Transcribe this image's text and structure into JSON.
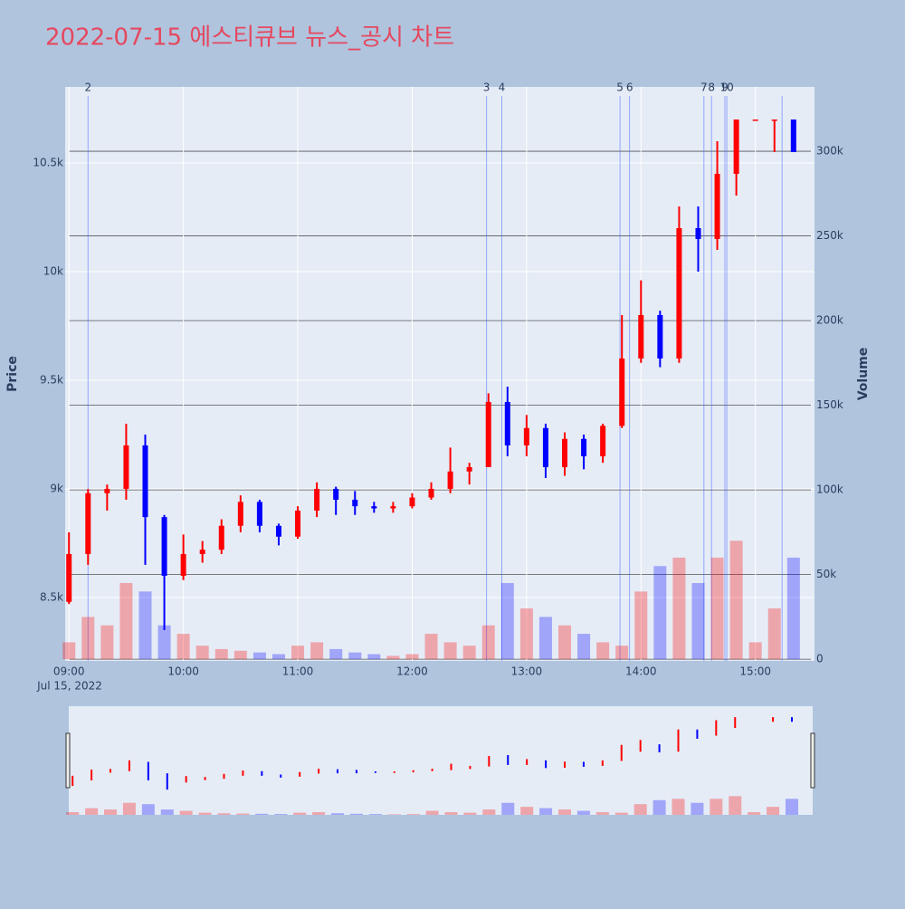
{
  "chart_data": {
    "type": "candlestick",
    "title": "2022-07-15 에스티큐브 뉴스_공시 차트",
    "y_title": "Price",
    "y2_title": "Volume",
    "x_date_label": "Jul 15, 2022",
    "increasing_color": "#ff0000",
    "decreasing_color": "#0000ff",
    "x": [
      "09:00",
      "09:10",
      "09:20",
      "09:30",
      "09:40",
      "09:50",
      "10:00",
      "10:10",
      "10:20",
      "10:30",
      "10:40",
      "10:50",
      "11:00",
      "11:10",
      "11:20",
      "11:30",
      "11:40",
      "11:50",
      "12:00",
      "12:10",
      "12:20",
      "12:30",
      "12:40",
      "12:50",
      "13:00",
      "13:10",
      "13:20",
      "13:30",
      "13:40",
      "13:50",
      "14:00",
      "14:10",
      "14:20",
      "14:30",
      "14:40",
      "14:50",
      "15:00",
      "15:10",
      "15:20"
    ],
    "open": [
      8480,
      8700,
      8980,
      9000,
      9200,
      8870,
      8600,
      8700,
      8720,
      8830,
      8940,
      8830,
      8780,
      8900,
      9000,
      8950,
      8920,
      8910,
      8920,
      8960,
      9000,
      9080,
      9100,
      9400,
      9200,
      9280,
      9100,
      9230,
      9150,
      9290,
      9600,
      9800,
      9600,
      10200,
      10150,
      10450,
      10700,
      10700,
      10700
    ],
    "high": [
      8800,
      9000,
      9020,
      9300,
      9250,
      8880,
      8790,
      8760,
      8860,
      8970,
      8950,
      8840,
      8920,
      9030,
      9010,
      8990,
      8940,
      8940,
      8980,
      9030,
      9190,
      9120,
      9440,
      9470,
      9340,
      9300,
      9260,
      9250,
      9300,
      9800,
      9960,
      9820,
      10300,
      10300,
      10600,
      10700,
      10700,
      10700,
      10700
    ],
    "low": [
      8470,
      8650,
      8900,
      8950,
      8650,
      8350,
      8580,
      8660,
      8700,
      8800,
      8800,
      8740,
      8770,
      8870,
      8880,
      8880,
      8890,
      8890,
      8910,
      8950,
      8980,
      9020,
      9100,
      9150,
      9150,
      9050,
      9060,
      9090,
      9120,
      9280,
      9580,
      9560,
      9580,
      10000,
      10100,
      10350,
      10700,
      10550,
      10550
    ],
    "close": [
      8700,
      8980,
      9000,
      9200,
      8870,
      8600,
      8700,
      8720,
      8830,
      8940,
      8830,
      8780,
      8900,
      9000,
      8950,
      8920,
      8910,
      8920,
      8960,
      9000,
      9080,
      9100,
      9400,
      9200,
      9280,
      9100,
      9230,
      9150,
      9290,
      9600,
      9800,
      9600,
      10200,
      10150,
      10450,
      10700,
      10700,
      10700,
      10550
    ],
    "volume": [
      10000,
      25000,
      20000,
      45000,
      40000,
      20000,
      15000,
      8000,
      6000,
      5000,
      4000,
      3000,
      8000,
      10000,
      6000,
      4000,
      3000,
      2000,
      3000,
      15000,
      10000,
      8000,
      20000,
      45000,
      30000,
      25000,
      20000,
      15000,
      10000,
      8000,
      40000,
      55000,
      60000,
      45000,
      60000,
      70000,
      10000,
      30000,
      60000
    ],
    "xlim": [
      "08:58",
      "15:31"
    ],
    "xticks": [
      "09:00",
      "10:00",
      "11:00",
      "12:00",
      "13:00",
      "14:00",
      "15:00"
    ],
    "ylim": [
      8208,
      10850
    ],
    "yticks": [
      {
        "value": 8500,
        "label": "8.5k"
      },
      {
        "value": 9000,
        "label": "9k"
      },
      {
        "value": 9500,
        "label": "9.5k"
      },
      {
        "value": 10000,
        "label": "10k"
      },
      {
        "value": 10500,
        "label": "10.5k"
      }
    ],
    "y2lim": [
      -1000,
      338000
    ],
    "y2ticks": [
      0,
      {
        "value": 50000,
        "label": "50k"
      },
      {
        "value": 100000,
        "label": "100k"
      },
      {
        "value": 150000,
        "label": "150k"
      },
      {
        "value": 200000,
        "label": "200k"
      },
      {
        "value": 250000,
        "label": "250k"
      },
      {
        "value": 300000,
        "label": "300k"
      }
    ],
    "events": [
      {
        "time": "09:10",
        "label": "2"
      },
      {
        "time": "12:39",
        "label": "3"
      },
      {
        "time": "12:47",
        "label": "4"
      },
      {
        "time": "13:49",
        "label": "5"
      },
      {
        "time": "13:54",
        "label": "6"
      },
      {
        "time": "14:33",
        "label": "7"
      },
      {
        "time": "14:37",
        "label": "8"
      },
      {
        "time": "14:44",
        "label": "9"
      },
      {
        "time": "14:45",
        "label": "10"
      },
      {
        "time": "15:14",
        "label": null
      }
    ]
  }
}
